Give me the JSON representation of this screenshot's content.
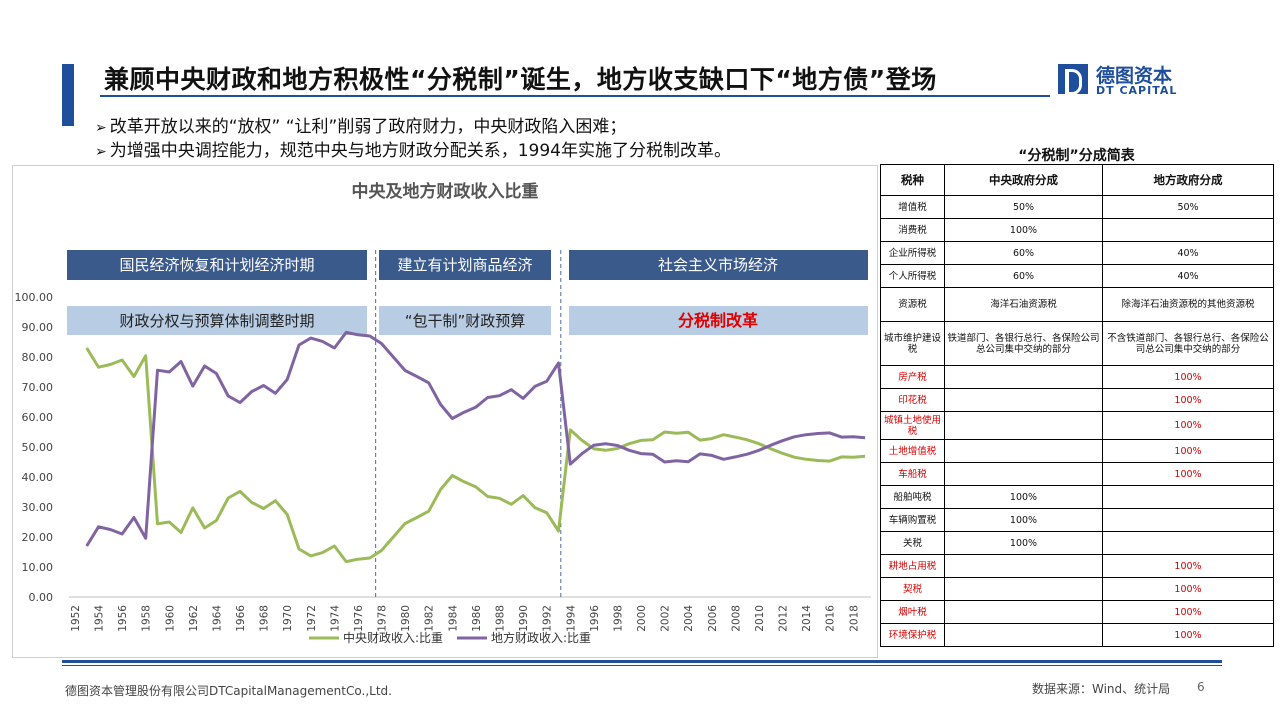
{
  "slide": {
    "title": "兼顾中央财政和地方积极性“分税制”诞生，地方收支缺口下“地方债”登场",
    "logo_cn": "德图资本",
    "logo_en": "DT CAPITAL",
    "bullets": [
      "改革开放以来的“放权” “让利”削弱了政府财力，中央财政陷入困难；",
      "为增强中央调控能力，规范中央与地方财政分配关系，1994年实施了分税制改革。"
    ],
    "footer_company": "德图资本管理股份有限公司DTCapitalManagementCo.,Ltd.",
    "footer_source": "数据来源：Wind、统计局",
    "page_number": "6"
  },
  "period_labels": {
    "row1": [
      "国民经济恢复和计划经济时期",
      "建立有计划商品经济",
      "社会主义市场经济"
    ],
    "row2": [
      "财政分权与预算体制调整时期",
      "“包干制”财政预算",
      "分税制改革"
    ]
  },
  "colors": {
    "central": "#9bbb59",
    "local": "#8064a2",
    "accent": "#1f4e9a",
    "period_dark": "#3a5a8c",
    "period_light": "#b8cce4",
    "reform_text": "#e00000"
  },
  "chart_data": {
    "type": "line",
    "title": "中央及地方财政收入比重",
    "ylim": [
      0,
      100
    ],
    "y_ticks": [
      "0.00",
      "10.00",
      "20.00",
      "30.00",
      "40.00",
      "50.00",
      "60.00",
      "70.00",
      "80.00",
      "90.00",
      "100.00"
    ],
    "x_tick_labels": [
      "1952",
      "1954",
      "1956",
      "1958",
      "1960",
      "1962",
      "1964",
      "1966",
      "1968",
      "1970",
      "1972",
      "1974",
      "1976",
      "1978",
      "1980",
      "1982",
      "1984",
      "1986",
      "1988",
      "1990",
      "1992",
      "1994",
      "1996",
      "1998",
      "2000",
      "2002",
      "2004",
      "2006",
      "2008",
      "2010",
      "2012",
      "2014",
      "2016",
      "2018"
    ],
    "x": [
      1953,
      1954,
      1955,
      1956,
      1957,
      1958,
      1959,
      1960,
      1961,
      1962,
      1963,
      1964,
      1965,
      1966,
      1967,
      1968,
      1969,
      1970,
      1971,
      1972,
      1973,
      1974,
      1975,
      1976,
      1977,
      1978,
      1979,
      1980,
      1981,
      1982,
      1983,
      1984,
      1985,
      1986,
      1987,
      1988,
      1989,
      1990,
      1991,
      1992,
      1993,
      1994,
      1995,
      1996,
      1997,
      1998,
      1999,
      2000,
      2001,
      2002,
      2003,
      2004,
      2005,
      2006,
      2007,
      2008,
      2009,
      2010,
      2011,
      2012,
      2013,
      2014,
      2015,
      2016,
      2017,
      2018,
      2019
    ],
    "dividers": [
      1977.5,
      1993.2
    ],
    "legend_position": "bottom",
    "series": [
      {
        "name": "中央财政收入:比重",
        "color": "#9bbb59",
        "values": [
          83.0,
          76.6,
          77.5,
          79.0,
          73.5,
          80.4,
          24.4,
          25.0,
          21.5,
          29.7,
          23.0,
          25.5,
          33.0,
          35.2,
          31.5,
          29.5,
          32.1,
          27.5,
          16.0,
          13.7,
          14.8,
          17.0,
          11.8,
          12.6,
          13.0,
          15.5,
          20.0,
          24.5,
          26.5,
          28.6,
          35.8,
          40.5,
          38.4,
          36.7,
          33.5,
          32.9,
          30.9,
          33.8,
          29.8,
          28.1,
          22.0,
          55.7,
          52.2,
          49.4,
          48.9,
          49.5,
          51.1,
          52.2,
          52.4,
          55.0,
          54.6,
          54.9,
          52.3,
          52.8,
          54.1,
          53.3,
          52.4,
          51.1,
          49.4,
          47.9,
          46.6,
          45.9,
          45.5,
          45.3,
          46.7,
          46.6,
          46.9
        ]
      },
      {
        "name": "地方财政收入:比重",
        "color": "#8064a2",
        "values": [
          17.0,
          23.4,
          22.5,
          21.0,
          26.5,
          19.6,
          75.6,
          75.0,
          78.5,
          70.3,
          77.0,
          74.5,
          67.0,
          64.8,
          68.5,
          70.5,
          67.9,
          72.5,
          84.0,
          86.3,
          85.2,
          83.0,
          88.2,
          87.4,
          87.0,
          84.5,
          80.0,
          75.5,
          73.5,
          71.4,
          64.2,
          59.5,
          61.6,
          63.3,
          66.5,
          67.1,
          69.1,
          66.2,
          70.2,
          71.9,
          78.0,
          44.3,
          47.8,
          50.6,
          51.1,
          50.5,
          48.9,
          47.8,
          47.6,
          45.0,
          45.4,
          45.1,
          47.7,
          47.2,
          45.9,
          46.7,
          47.6,
          48.9,
          50.6,
          52.1,
          53.4,
          54.1,
          54.5,
          54.7,
          53.3,
          53.4,
          53.1
        ]
      }
    ]
  },
  "tax_table": {
    "title": "“分税制”分成简表",
    "headers": [
      "税种",
      "中央政府分成",
      "地方政府分成"
    ],
    "rows": [
      {
        "name": "增值税",
        "central": "50%",
        "local": "50%",
        "red": false
      },
      {
        "name": "消费税",
        "central": "100%",
        "local": "",
        "red": false
      },
      {
        "name": "企业所得税",
        "central": "60%",
        "local": "40%",
        "red": false
      },
      {
        "name": "个人所得税",
        "central": "60%",
        "local": "40%",
        "red": false
      },
      {
        "name": "资源税",
        "central": "海洋石油资源税",
        "local": "除海洋石油资源税的其他资源税",
        "red": false
      },
      {
        "name": "城市维护建设税",
        "central": "铁道部门、各银行总行、各保险公司总公司集中交纳的部分",
        "local": "不含铁道部门、各银行总行、各保险公司总公司集中交纳的部分",
        "red": false
      },
      {
        "name": "房产税",
        "central": "",
        "local": "100%",
        "red": true
      },
      {
        "name": "印花税",
        "central": "",
        "local": "100%",
        "red": true
      },
      {
        "name": "城镇土地使用税",
        "central": "",
        "local": "100%",
        "red": true
      },
      {
        "name": "土地增值税",
        "central": "",
        "local": "100%",
        "red": true
      },
      {
        "name": "车船税",
        "central": "",
        "local": "100%",
        "red": true
      },
      {
        "name": "船舶吨税",
        "central": "100%",
        "local": "",
        "red": false
      },
      {
        "name": "车辆购置税",
        "central": "100%",
        "local": "",
        "red": false
      },
      {
        "name": "关税",
        "central": "100%",
        "local": "",
        "red": false
      },
      {
        "name": "耕地占用税",
        "central": "",
        "local": "100%",
        "red": true
      },
      {
        "name": "契税",
        "central": "",
        "local": "100%",
        "red": true
      },
      {
        "name": "烟叶税",
        "central": "",
        "local": "100%",
        "red": true
      },
      {
        "name": "环境保护税",
        "central": "",
        "local": "100%",
        "red": true
      }
    ]
  }
}
